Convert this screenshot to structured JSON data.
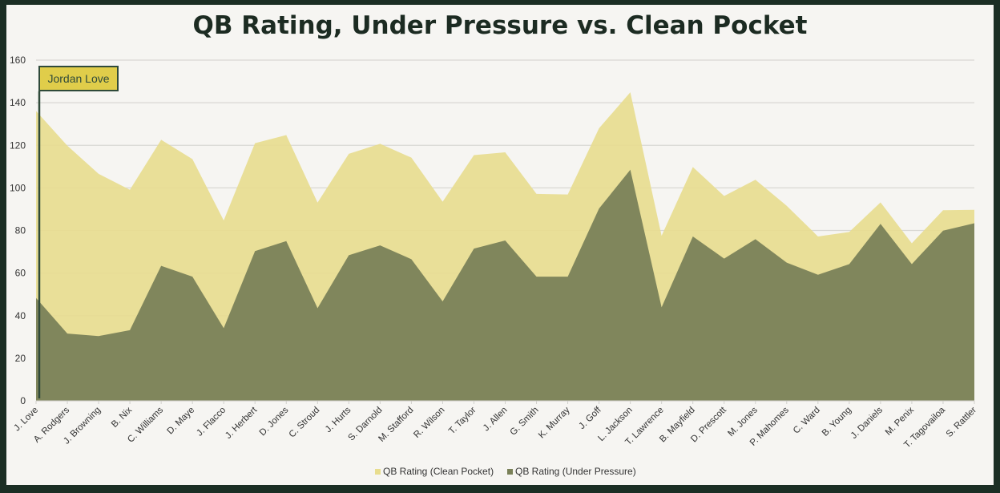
{
  "chart_data": {
    "type": "area",
    "title": "QB Rating, Under Pressure vs. Clean Pocket",
    "categories": [
      "J. Love",
      "A. Rodgers",
      "J. Browning",
      "B. Nix",
      "C. Williams",
      "D. Maye",
      "J. Flacco",
      "J. Herbert",
      "D. Jones",
      "C. Stroud",
      "J. Hurts",
      "S. Darnold",
      "M. Stafford",
      "R. Wilson",
      "T. Taylor",
      "J. Allen",
      "G. Smith",
      "K. Murray",
      "J. Goff",
      "L. Jackson",
      "T. Lawrence",
      "B. Mayfield",
      "D. Prescott",
      "M. Jones",
      "P. Mahomes",
      "C. Ward",
      "B. Young",
      "J. Daniels",
      "M. Penix",
      "T. Tagovailoa",
      "S. Rattler"
    ],
    "series": [
      {
        "name": "QB Rating (Clean Pocket)",
        "color": "#e8dd8e",
        "values": [
          136.1,
          119.8,
          106.6,
          99.1,
          122.6,
          113.5,
          84.7,
          121.0,
          124.8,
          93.1,
          116.0,
          120.7,
          114.2,
          93.5,
          115.4,
          116.7,
          97.2,
          96.9,
          128.0,
          144.9,
          77.5,
          109.8,
          96.2,
          103.8,
          91.6,
          77.2,
          79.3,
          93.2,
          74.0,
          89.5,
          89.7
        ]
      },
      {
        "name": "QB Rating (Under Pressure)",
        "color": "#7a8158",
        "values": [
          48.3,
          31.6,
          30.4,
          33.2,
          63.4,
          58.3,
          34.1,
          70.3,
          75.0,
          43.5,
          68.4,
          73.0,
          66.5,
          46.7,
          71.5,
          75.3,
          58.3,
          58.3,
          90.3,
          108.5,
          43.9,
          77.2,
          66.8,
          75.9,
          64.9,
          59.2,
          64.2,
          83.1,
          64.2,
          79.9,
          83.4
        ]
      }
    ],
    "ylim": [
      0,
      160
    ],
    "yticks": [
      0,
      20,
      40,
      60,
      80,
      100,
      120,
      140,
      160
    ],
    "grid": true,
    "legend": "bottom",
    "annotation": {
      "label": "Jordan Love",
      "category": "J. Love",
      "color": "#e0cd4a"
    }
  }
}
